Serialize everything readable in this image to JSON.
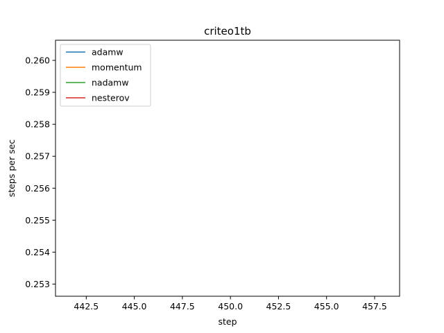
{
  "chart_data": {
    "type": "line",
    "title": "criteo1tb",
    "xlabel": "step",
    "ylabel": "steps per sec",
    "xlim": [
      440.9,
      458.8
    ],
    "ylim": [
      0.25262,
      0.26063
    ],
    "xticks": [
      442.5,
      445.0,
      447.5,
      450.0,
      452.5,
      455.0,
      457.5
    ],
    "xtick_labels": [
      "442.5",
      "445.0",
      "447.5",
      "450.0",
      "452.5",
      "455.0",
      "457.5"
    ],
    "yticks": [
      0.253,
      0.254,
      0.255,
      0.256,
      0.257,
      0.258,
      0.259,
      0.26
    ],
    "ytick_labels": [
      "0.253",
      "0.254",
      "0.255",
      "0.256",
      "0.257",
      "0.258",
      "0.259",
      "0.260"
    ],
    "grid": false,
    "legend_position": "top-left",
    "series": [
      {
        "name": "adamw",
        "color": "#1f77b4",
        "x": [],
        "y": []
      },
      {
        "name": "momentum",
        "color": "#ff7f0e",
        "x": [],
        "y": []
      },
      {
        "name": "nadamw",
        "color": "#2ca02c",
        "x": [],
        "y": []
      },
      {
        "name": "nesterov",
        "color": "#d62728",
        "x": [],
        "y": []
      }
    ]
  }
}
